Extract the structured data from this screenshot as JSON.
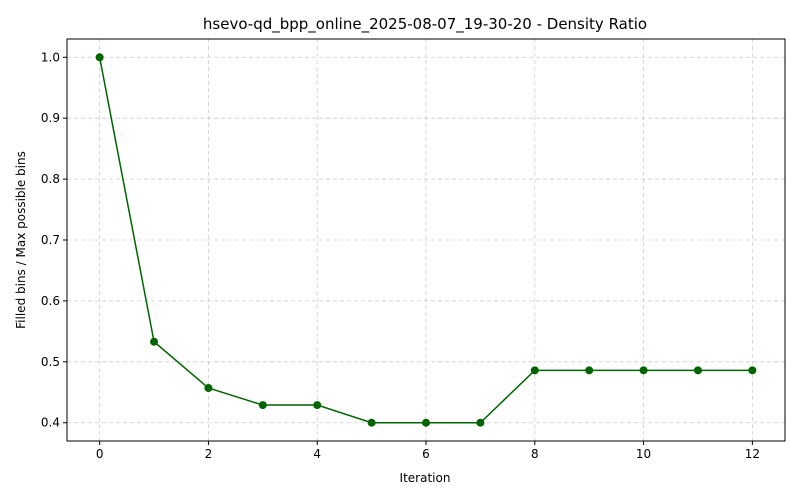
{
  "chart_data": {
    "type": "line",
    "title": "hsevo-qd_bpp_online_2025-08-07_19-30-20 - Density Ratio",
    "xlabel": "Iteration",
    "ylabel": "Filled bins / Max possible bins",
    "x": [
      0,
      1,
      2,
      3,
      4,
      5,
      6,
      7,
      8,
      9,
      10,
      11,
      12
    ],
    "series": [
      {
        "name": "Density Ratio",
        "values": [
          1.0,
          0.533,
          0.457,
          0.429,
          0.429,
          0.4,
          0.4,
          0.4,
          0.486,
          0.486,
          0.486,
          0.486,
          0.486
        ]
      }
    ],
    "xlim": [
      -0.6,
      12.6
    ],
    "ylim": [
      0.37,
      1.03
    ],
    "xticks": [
      0,
      2,
      4,
      6,
      8,
      10,
      12
    ],
    "yticks": [
      0.4,
      0.5,
      0.6,
      0.7,
      0.8,
      0.9,
      1.0
    ],
    "ytick_labels": [
      "0.4",
      "0.5",
      "0.6",
      "0.7",
      "0.8",
      "0.9",
      "1.0"
    ],
    "grid": true,
    "line_color": "#006400",
    "grid_color": "#cccccc"
  }
}
